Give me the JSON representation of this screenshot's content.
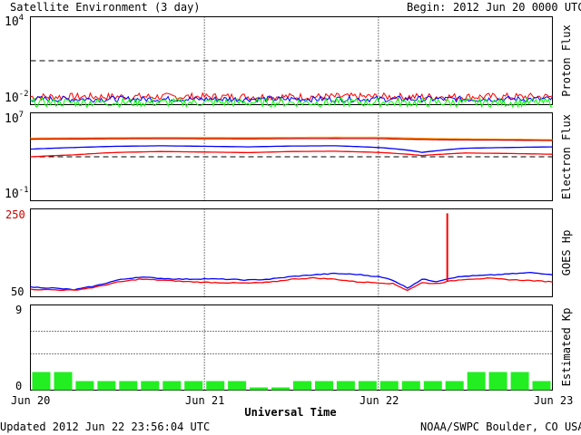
{
  "header": {
    "title": "Satellite Environment (3 day)",
    "begin_label": "Begin:",
    "begin_value": "2012 Jun 20 0000 UTC"
  },
  "footer": {
    "updated": "Updated 2012 Jun 22 23:56:04 UTC",
    "credit": "NOAA/SWPC Boulder, CO USA"
  },
  "colors": {
    "red": "#ff0000",
    "blue": "#0000ff",
    "green": "#00ff00",
    "orange": "#ff9900",
    "dark_red": "#cc0000",
    "kp_bar": "#22ee22"
  },
  "chart_data": [
    {
      "id": "proton",
      "type": "line",
      "ylabel": "Proton Flux",
      "yscale": "log",
      "ylim_exp": [
        -2,
        4
      ],
      "ytick_base": "10",
      "ytick_top_exp": "4",
      "ytick_bottom_exp": "-2",
      "reference_line": 10,
      "series": [
        {
          "color": "red",
          "level": 0.035,
          "noise": 0.5
        },
        {
          "color": "blue",
          "level": 0.024,
          "noise": 0.4
        },
        {
          "color": "green",
          "level": 0.014,
          "noise": 0.6
        }
      ]
    },
    {
      "id": "electron",
      "type": "line",
      "ylabel": "Electron Flux",
      "yscale": "log",
      "ylim_exp": [
        -1,
        7
      ],
      "ytick_base": "10",
      "ytick_top_exp": "7",
      "ytick_bottom_exp": "-1",
      "reference_line": 1000,
      "x": [
        0,
        6,
        12,
        18,
        24,
        30,
        36,
        42,
        48,
        52,
        54,
        56,
        60,
        66,
        72
      ],
      "series": [
        {
          "color": "orange",
          "values": [
            50000,
            52000,
            55000,
            57000,
            56000,
            55000,
            58000,
            60000,
            59000,
            52000,
            47000,
            45000,
            42000,
            40000,
            35000
          ]
        },
        {
          "color": "dark_red",
          "values": [
            40000,
            42000,
            44000,
            45000,
            44000,
            43000,
            45000,
            46000,
            45000,
            40000,
            38000,
            36000,
            34000,
            33000,
            30000
          ]
        },
        {
          "color": "blue",
          "values": [
            5000,
            7000,
            9000,
            10000,
            9000,
            8000,
            9500,
            10000,
            7000,
            4000,
            2500,
            3500,
            6000,
            7000,
            8000
          ]
        },
        {
          "color": "red",
          "values": [
            1000,
            1500,
            2500,
            3000,
            2700,
            2400,
            3000,
            3200,
            2500,
            1700,
            1300,
            1600,
            2200,
            2000,
            1700
          ]
        }
      ]
    },
    {
      "id": "goes_hp",
      "type": "line",
      "ylabel": "GOES Hp",
      "ylim": [
        50,
        250
      ],
      "ytick_top": "250",
      "ytick_bottom": "50",
      "x": [
        0,
        3,
        6,
        9,
        12,
        15,
        18,
        21,
        24,
        27,
        30,
        33,
        36,
        39,
        42,
        45,
        48,
        50,
        52,
        54,
        56,
        58,
        60,
        63,
        66,
        69,
        72
      ],
      "series": [
        {
          "color": "blue",
          "values": [
            72,
            70,
            66,
            75,
            88,
            95,
            92,
            90,
            91,
            90,
            88,
            90,
            96,
            100,
            103,
            101,
            96,
            88,
            70,
            90,
            85,
            93,
            97,
            99,
            102,
            105,
            101
          ]
        },
        {
          "color": "red",
          "values": [
            67,
            66,
            65,
            72,
            83,
            90,
            88,
            85,
            83,
            82,
            81,
            83,
            90,
            93,
            90,
            84,
            82,
            80,
            65,
            82,
            80,
            86,
            90,
            92,
            89,
            87,
            84
          ]
        }
      ],
      "spike": {
        "x": 57.5,
        "y": 240,
        "color": "red"
      }
    },
    {
      "id": "kp",
      "type": "bar",
      "ylabel": "Estimated Kp",
      "ylim": [
        0,
        9
      ],
      "ytick_top": "9",
      "ytick_bottom": "0",
      "values": [
        2.0,
        2.0,
        1.0,
        1.0,
        1.0,
        1.0,
        1.0,
        1.0,
        1.0,
        1.0,
        0.3,
        0.3,
        1.0,
        1.0,
        1.0,
        1.0,
        1.0,
        1.0,
        1.0,
        1.0,
        2.0,
        2.0,
        2.0,
        1.0
      ],
      "dotted_levels": [
        4,
        6.5,
        9
      ]
    }
  ],
  "xaxis": {
    "title": "Universal Time",
    "ticks": [
      "Jun 20",
      "Jun 21",
      "Jun 22",
      "Jun 23"
    ],
    "range_hours": [
      0,
      72
    ]
  }
}
